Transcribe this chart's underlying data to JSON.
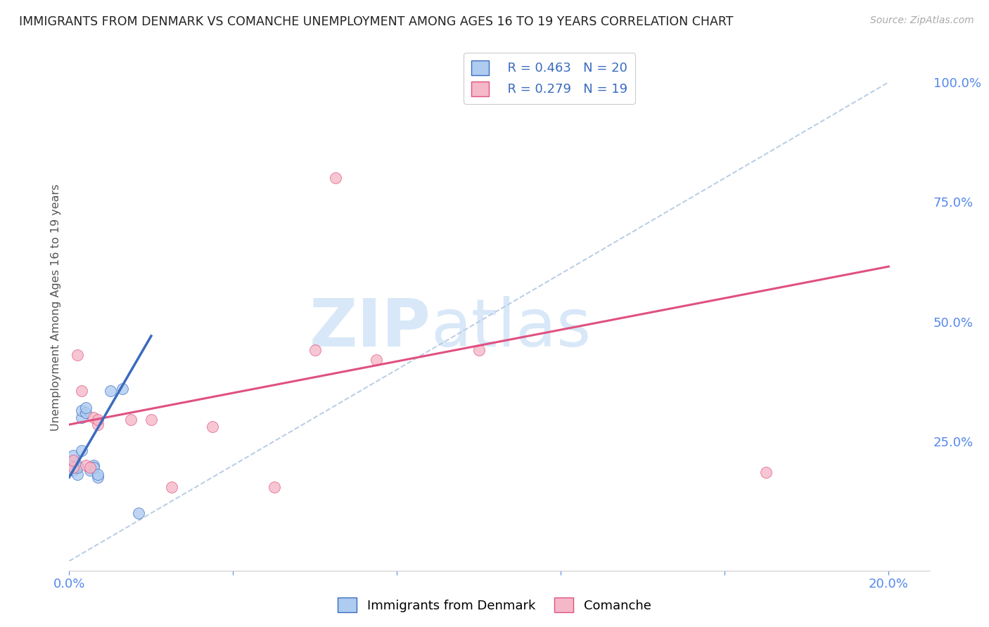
{
  "title": "IMMIGRANTS FROM DENMARK VS COMANCHE UNEMPLOYMENT AMONG AGES 16 TO 19 YEARS CORRELATION CHART",
  "source": "Source: ZipAtlas.com",
  "ylabel": "Unemployment Among Ages 16 to 19 years",
  "right_ytick_labels": [
    "100.0%",
    "75.0%",
    "50.0%",
    "25.0%"
  ],
  "right_ytick_values": [
    1.0,
    0.75,
    0.5,
    0.25
  ],
  "xtick_positions": [
    0.0,
    0.04,
    0.08,
    0.12,
    0.16,
    0.2
  ],
  "xtick_labels": [
    "0.0%",
    "",
    "",
    "",
    "",
    "20.0%"
  ],
  "xlim": [
    0.0,
    0.21
  ],
  "ylim": [
    -0.02,
    1.08
  ],
  "blue_scatter_x": [
    0.001,
    0.001,
    0.001,
    0.001,
    0.002,
    0.002,
    0.002,
    0.003,
    0.003,
    0.003,
    0.004,
    0.004,
    0.005,
    0.006,
    0.006,
    0.007,
    0.007,
    0.01,
    0.013,
    0.017
  ],
  "blue_scatter_y": [
    0.19,
    0.2,
    0.21,
    0.22,
    0.18,
    0.2,
    0.195,
    0.23,
    0.3,
    0.315,
    0.31,
    0.32,
    0.19,
    0.2,
    0.195,
    0.175,
    0.18,
    0.355,
    0.36,
    0.1
  ],
  "pink_scatter_x": [
    0.001,
    0.001,
    0.002,
    0.003,
    0.004,
    0.005,
    0.006,
    0.007,
    0.007,
    0.015,
    0.02,
    0.025,
    0.035,
    0.05,
    0.06,
    0.065,
    0.075,
    0.1,
    0.17
  ],
  "pink_scatter_y": [
    0.195,
    0.21,
    0.43,
    0.355,
    0.2,
    0.195,
    0.3,
    0.285,
    0.295,
    0.295,
    0.295,
    0.155,
    0.28,
    0.155,
    0.44,
    0.8,
    0.42,
    0.44,
    0.185
  ],
  "blue_line_x": [
    0.0,
    0.02
  ],
  "blue_line_y": [
    0.175,
    0.47
  ],
  "pink_line_x": [
    0.0,
    0.2
  ],
  "pink_line_y": [
    0.285,
    0.615
  ],
  "diagonal_line_x": [
    0.0,
    0.2
  ],
  "diagonal_line_y": [
    0.0,
    1.0
  ],
  "legend_blue_r": "R = 0.463",
  "legend_blue_n": "N = 20",
  "legend_pink_r": "R = 0.279",
  "legend_pink_n": "N = 19",
  "blue_color": "#aecbf0",
  "blue_line_color": "#3a6bbf",
  "pink_color": "#f5b8c8",
  "pink_line_color": "#e05080",
  "diagonal_color": "#b8cce4",
  "grid_color": "#d8d8e0",
  "title_color": "#222222",
  "legend_text_color": "#3a6bbf",
  "right_axis_color": "#5588ee",
  "bottom_axis_color": "#5588ee",
  "watermark_zip": "ZIP",
  "watermark_atlas": "atlas",
  "watermark_color": "#d8e8f8",
  "marker_size": 130,
  "bottom_legend_labels": [
    "Immigrants from Denmark",
    "Comanche"
  ]
}
